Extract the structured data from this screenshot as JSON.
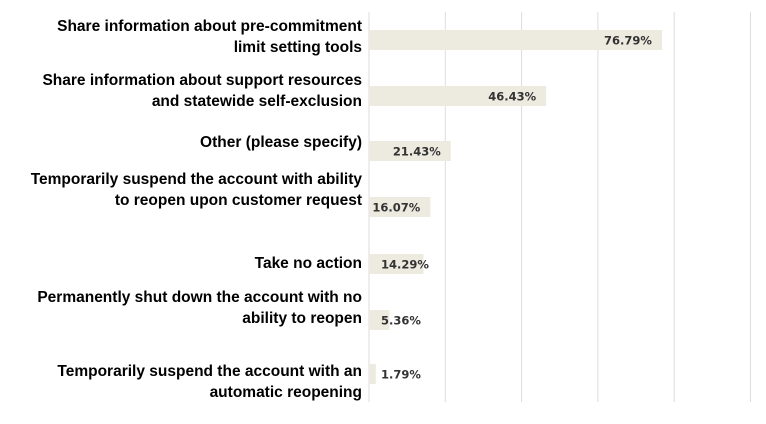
{
  "chart_data": {
    "type": "bar",
    "orientation": "horizontal",
    "categories": [
      "Share information about pre-commitment limit setting tools",
      "Share information about support resources and statewide self-exclusion",
      "Other (please specify)",
      "Temporarily suspend the account with ability to reopen upon customer request",
      "Take no action",
      "Permanently shut down the account with no ability to reopen",
      "Temporarily suspend the account with an automatic reopening"
    ],
    "values": [
      76.79,
      46.43,
      21.43,
      16.07,
      14.29,
      5.36,
      1.79
    ],
    "data_labels": [
      "76.79%",
      "46.43%",
      "21.43%",
      "16.07%",
      "14.29%",
      "5.36%",
      "1.79%"
    ],
    "xlim": [
      0,
      100
    ],
    "grid_step": 20,
    "grid": true,
    "tick_labels_shown": false,
    "bar_color": "#EDEAE0",
    "grid_color": "#DDDDDD",
    "label_color": "#333333"
  }
}
